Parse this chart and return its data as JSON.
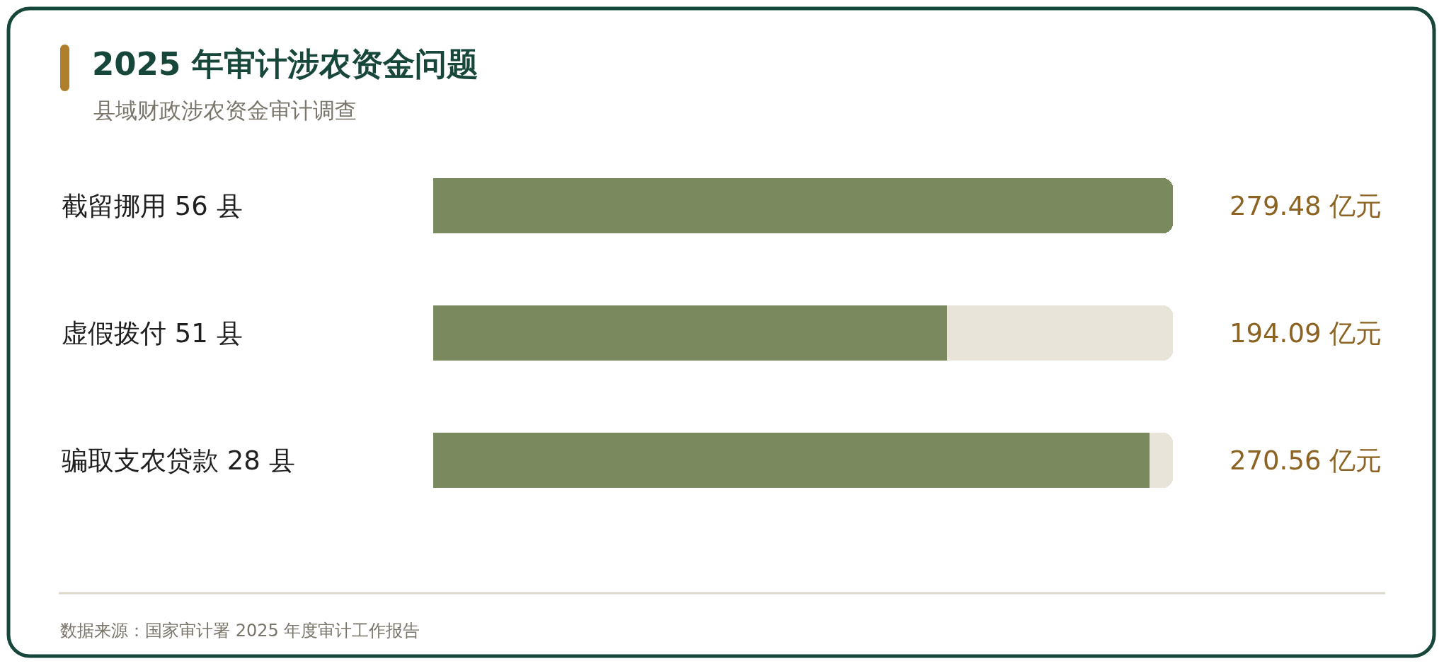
{
  "chart_data": {
    "type": "bar",
    "orientation": "horizontal",
    "stacked": true,
    "title": "2025 年审计涉农资金问题",
    "subtitle": "县域财政涉农资金审计调查",
    "categories": [
      "截留挪用 56 县",
      "虚假拨付 51 县",
      "骗取支农贷款 28 县"
    ],
    "series": [
      {
        "color": "#7b8a5e",
        "values": [
          279.48,
          194.09,
          270.56
        ],
        "value_labels": [
          "279.48 亿元",
          "194.09 亿元",
          "270.56 亿元"
        ]
      },
      {
        "color": "#e8e4da",
        "values": [
          null,
          85.39,
          8.92
        ]
      }
    ],
    "xlim": [
      0,
      279.48
    ],
    "tick_labels": "y",
    "annotations": [
      "数据来源：国家审计署 2025 年度审计工作报告"
    ]
  }
}
